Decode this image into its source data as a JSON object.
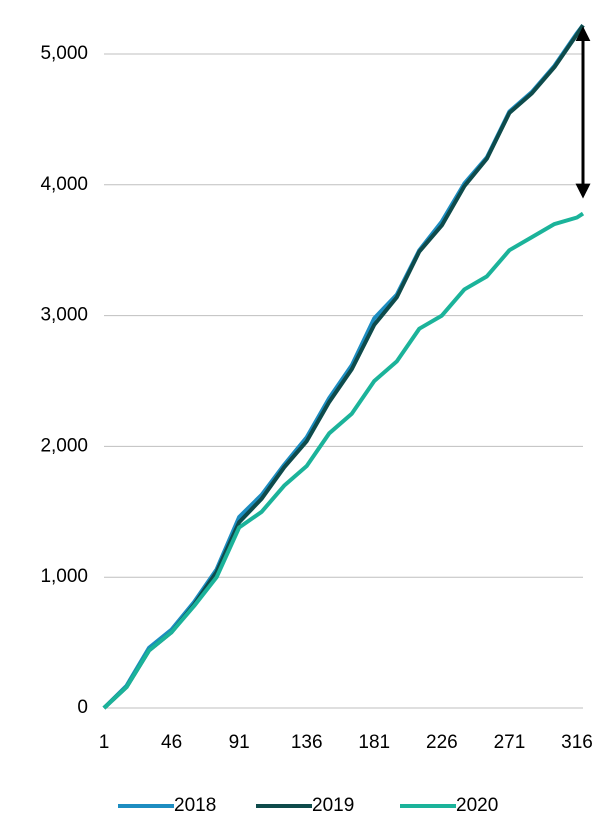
{
  "chart_data": {
    "type": "line",
    "x": [
      1,
      16,
      31,
      46,
      61,
      76,
      91,
      106,
      121,
      136,
      151,
      166,
      181,
      196,
      211,
      226,
      241,
      256,
      271,
      286,
      301,
      316,
      320
    ],
    "series": [
      {
        "name": "2018",
        "color": "#1d8dc1",
        "values": [
          0,
          170,
          460,
          600,
          810,
          1060,
          1460,
          1630,
          1860,
          2070,
          2370,
          2620,
          2980,
          3160,
          3500,
          3720,
          4010,
          4210,
          4560,
          4710,
          4910,
          5160,
          5220
        ]
      },
      {
        "name": "2019",
        "color": "#0e4b4b",
        "values": [
          0,
          160,
          440,
          580,
          790,
          1040,
          1420,
          1600,
          1840,
          2040,
          2340,
          2590,
          2930,
          3140,
          3490,
          3690,
          3990,
          4200,
          4550,
          4700,
          4900,
          5150,
          5220
        ]
      },
      {
        "name": "2020",
        "color": "#1bb39a",
        "values": [
          0,
          160,
          440,
          580,
          780,
          1000,
          1380,
          1500,
          1700,
          1850,
          2100,
          2250,
          2500,
          2650,
          2900,
          3000,
          3200,
          3300,
          3500,
          3600,
          3700,
          3750,
          3780
        ]
      }
    ],
    "xlim": [
      1,
      320
    ],
    "xticks": [
      1,
      46,
      91,
      136,
      181,
      226,
      271,
      316
    ],
    "ylim": [
      0,
      5000
    ],
    "yticks": [
      0,
      {
        "value": 1000,
        "label": "1,000"
      },
      {
        "value": 2000,
        "label": "2,000"
      },
      {
        "value": 3000,
        "label": "3,000"
      },
      {
        "value": 4000,
        "label": "4,000"
      },
      {
        "value": 5000,
        "label": "5,000"
      }
    ],
    "grid": true,
    "legend": "bottom"
  }
}
